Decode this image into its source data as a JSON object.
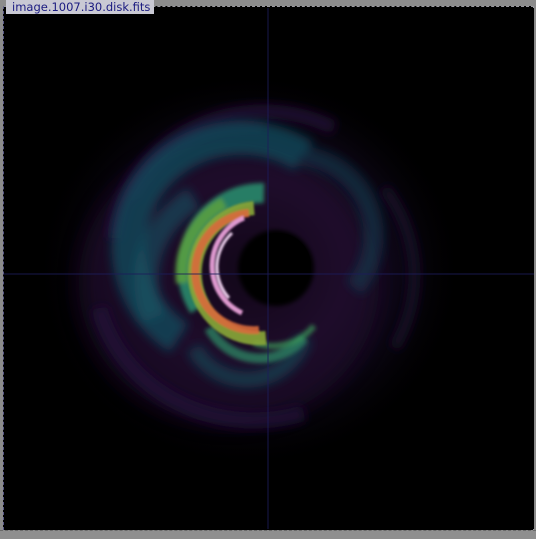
{
  "window": {
    "title": "image.1007.i30.disk.fits",
    "secondary_title": "",
    "background_color": "#8c8c8c"
  },
  "image": {
    "colormap": [
      "#000000",
      "#1a0a2e",
      "#15405a",
      "#1f7a70",
      "#6fb03a",
      "#e07a3a",
      "#f0c0f0"
    ],
    "crosshair_color": "#1c1c5a",
    "icons": [
      "crosshair-icon"
    ]
  }
}
